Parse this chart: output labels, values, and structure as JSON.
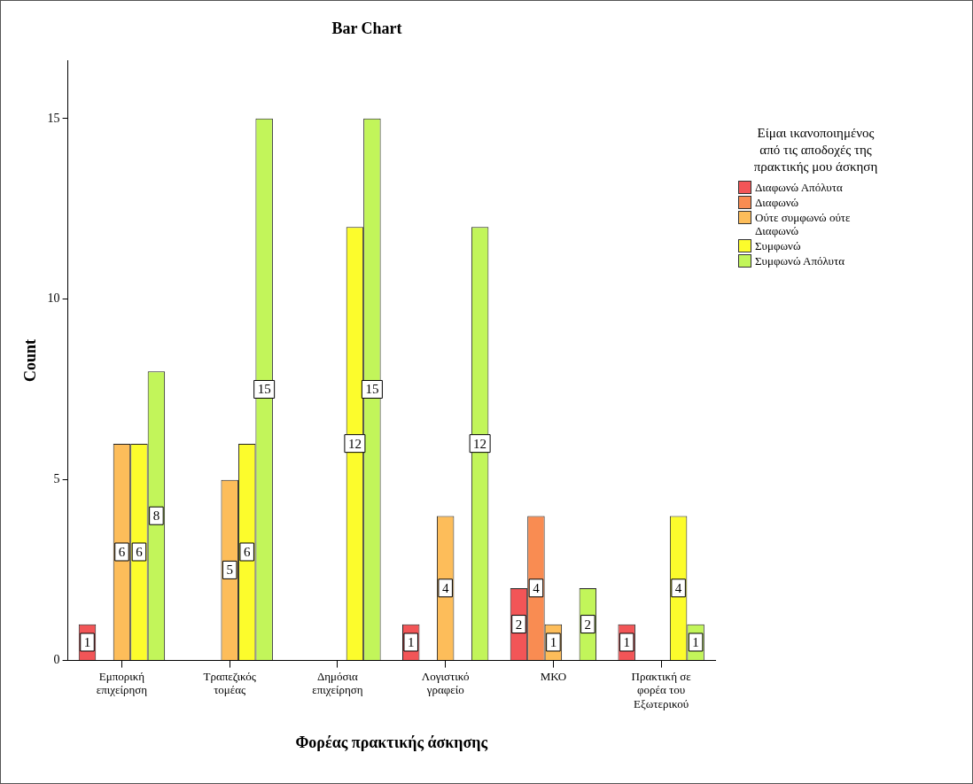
{
  "chart_data": {
    "type": "bar",
    "title": "Bar Chart",
    "xlabel": "Φορέας πρακτικής άσκησης",
    "ylabel": "Count",
    "legend_title": "Είμαι ικανοποιημένος από τις αποδοχές της πρακτικής μου άσκηση",
    "categories": [
      "Εμπορική επιχείρηση",
      "Τραπεζικός τομέας",
      "Δημόσια επιχείρηση",
      "Λογιστικό γραφείο",
      "ΜΚΟ",
      "Πρακτική σε φορέα του Εξωτερικού"
    ],
    "series": [
      {
        "name": "Διαφωνώ Απόλυτα",
        "color": "#f25557",
        "values": [
          1,
          null,
          null,
          1,
          2,
          1
        ]
      },
      {
        "name": "Διαφωνώ",
        "color": "#f98c52",
        "values": [
          null,
          null,
          null,
          null,
          4,
          null
        ]
      },
      {
        "name": "Ούτε συμφωνώ ούτε Διαφωνώ",
        "color": "#fdbd5a",
        "values": [
          6,
          5,
          null,
          4,
          1,
          null
        ]
      },
      {
        "name": "Συμφωνώ",
        "color": "#fcfc2c",
        "values": [
          6,
          6,
          12,
          null,
          null,
          4
        ]
      },
      {
        "name": "Συμφωνώ Απόλυτα",
        "color": "#c2f55a",
        "values": [
          8,
          15,
          15,
          12,
          2,
          1
        ]
      }
    ],
    "ylim": [
      0,
      16.6
    ],
    "yticks": [
      0,
      5,
      10,
      15
    ],
    "grid": false,
    "legend": "right",
    "data_labels": true
  }
}
